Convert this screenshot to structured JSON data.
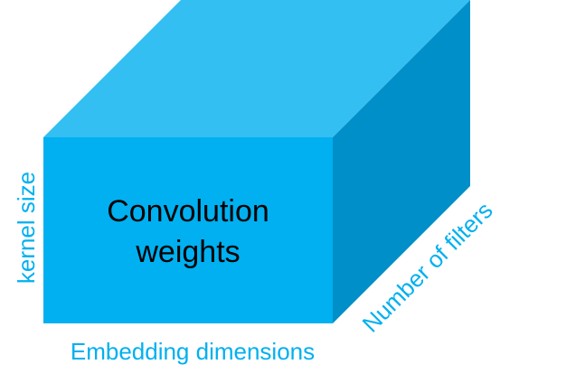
{
  "diagram": {
    "center_label_line1": "Convolution",
    "center_label_line2": "weights",
    "axis_bottom_label": "Embedding dimensions",
    "axis_left_label": "kernel size",
    "axis_diagonal_label": "Number of filters"
  },
  "colors": {
    "front_face": "#00b0f0",
    "top_face": "#33bff2",
    "side_face": "#008fc9",
    "axis_label": "#00b0f0",
    "center_label": "#000000"
  }
}
